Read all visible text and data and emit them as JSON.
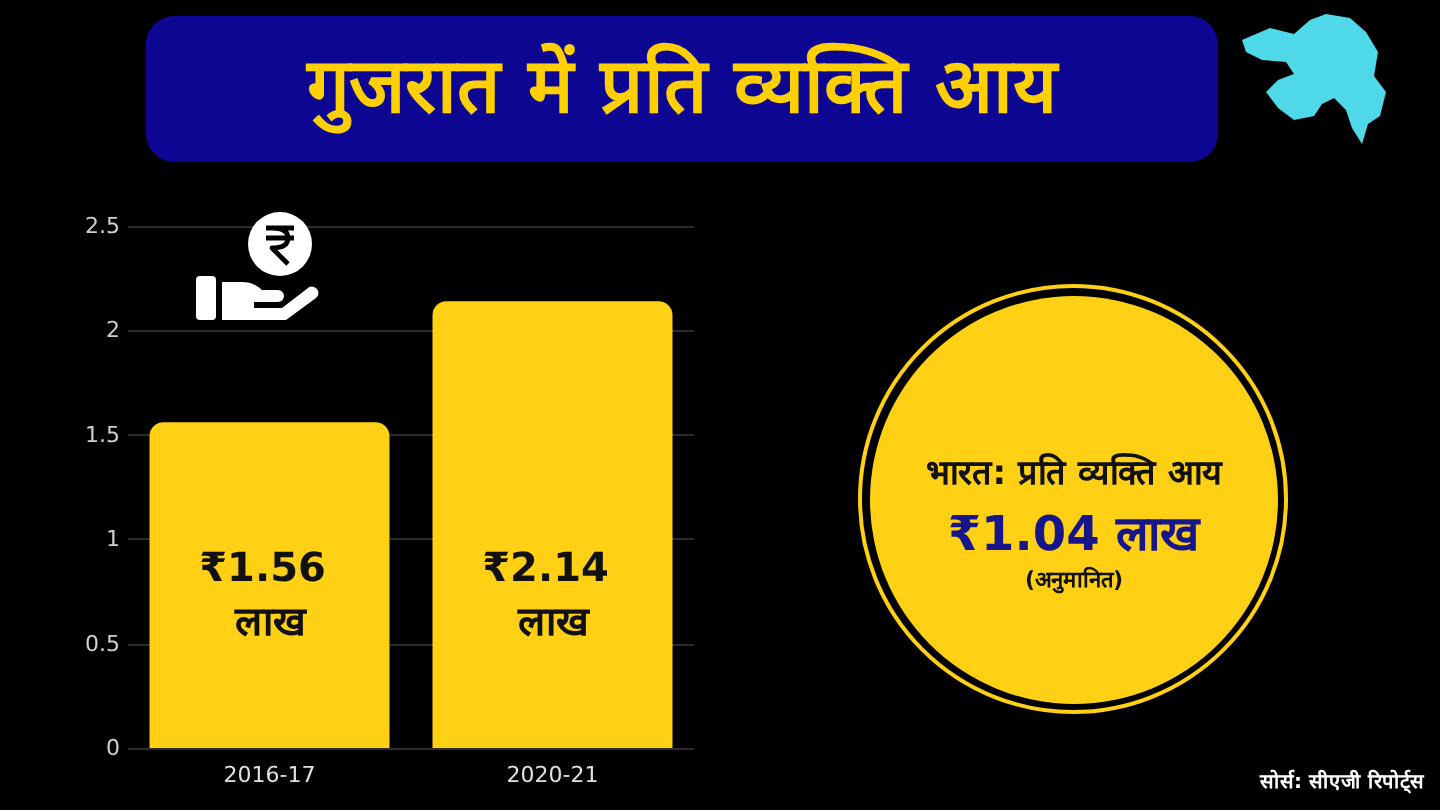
{
  "chart_data": {
    "type": "bar",
    "title": "गुजरात में प्रति व्यक्ति आय",
    "categories": [
      "2016-17",
      "2020-21"
    ],
    "values": [
      1.56,
      2.14
    ],
    "color": "#ffd014",
    "value_labels": [
      "₹1.56 लाख",
      "₹2.14 लाख"
    ],
    "ylim": [
      0,
      2.5
    ],
    "yticks": [
      0,
      0.5,
      1,
      1.5,
      2,
      2.5
    ],
    "grid": "y",
    "annotations": [
      "भारत: प्रति व्यक्ति आय",
      "₹1.04 लाख",
      "(अनुमानित)",
      "सोर्स: सीएजी रिपोर्ट्स"
    ]
  }
}
